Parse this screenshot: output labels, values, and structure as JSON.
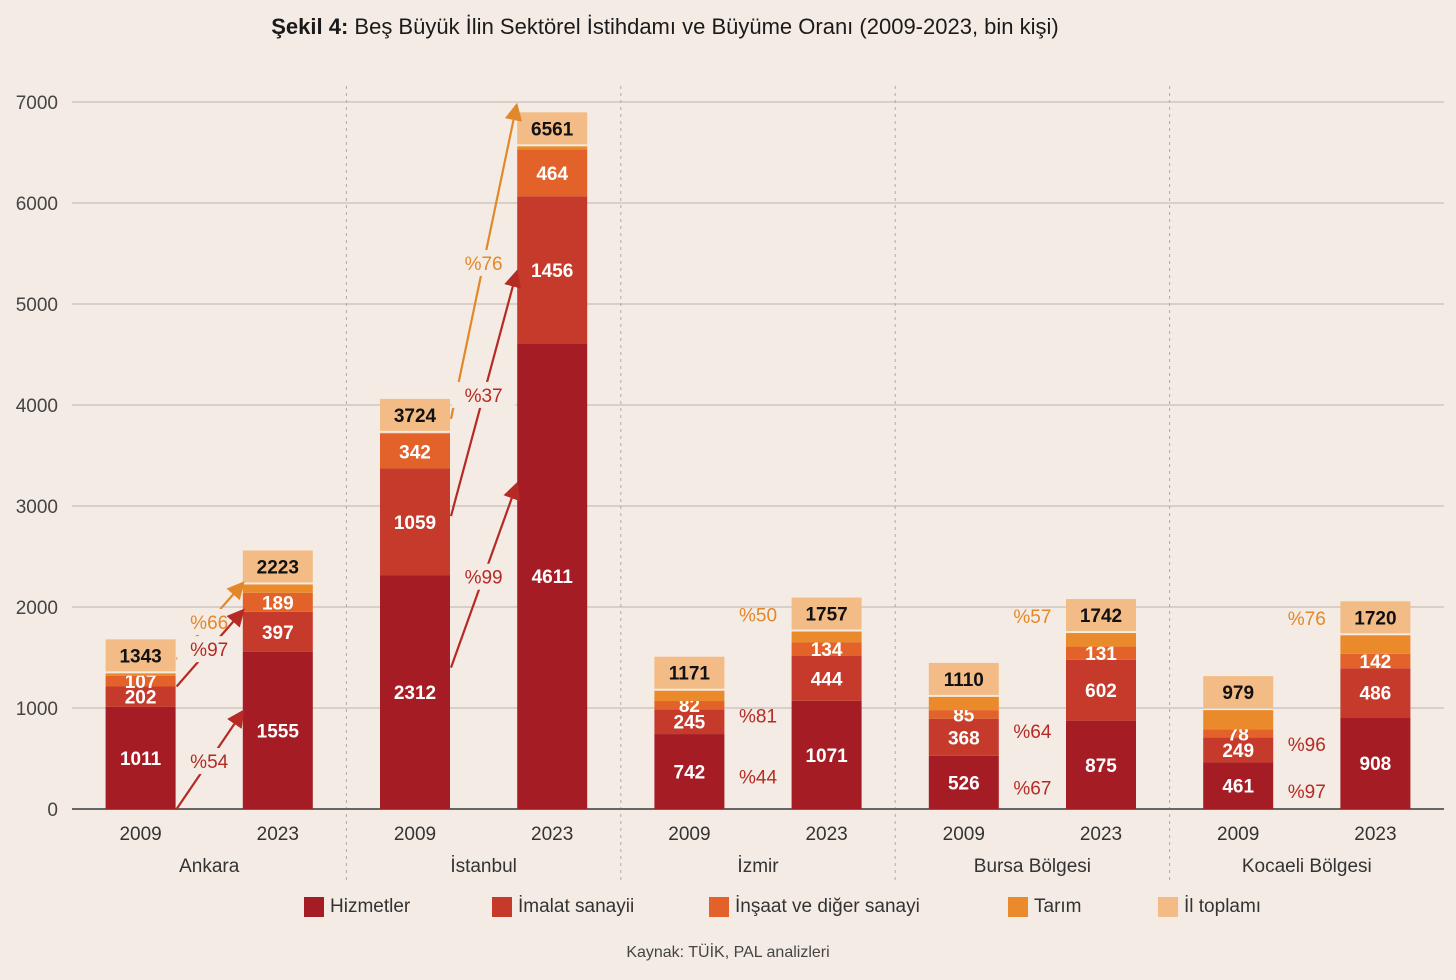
{
  "title": {
    "bold": "Şekil 4:",
    "text": "Beş Büyük İlin Sektörel İstihdamı ve Büyüme Oranı (2009-2023, bin kişi)"
  },
  "source": "Kaynak: TÜİK, PAL analizleri",
  "colors": {
    "hizmetler": "#a51c24",
    "imalat": "#c63a2c",
    "insaat": "#e2622a",
    "tarim": "#ea8a2a",
    "toplam": "#f3bb85",
    "arrow_total": "#e2882a",
    "arrow_sector": "#b52a24",
    "pct_total_text": "#e2882a",
    "pct_sector_text": "#b52a24"
  },
  "chart_data": {
    "type": "bar",
    "stacked": true,
    "ylim": [
      0,
      7000
    ],
    "yticks": [
      "0",
      "1000",
      "2000",
      "3000",
      "4000",
      "5000",
      "6000",
      "7000"
    ],
    "series_names": [
      "Hizmetler",
      "İmalat sanayii",
      "İnşaat ve diğer sanayi",
      "Tarım",
      "İl toplamı"
    ],
    "groups": [
      {
        "name": "Ankara",
        "bars": [
          {
            "year": "2009",
            "hizmetler": 1011,
            "imalat": 202,
            "insaat": 107,
            "tarim": 23,
            "total": 1343,
            "labels": {
              "hizmetler": "1011",
              "imalat": "202",
              "insaat": "107"
            },
            "total_label": "1343"
          },
          {
            "year": "2023",
            "hizmetler": 1555,
            "imalat": 397,
            "insaat": 189,
            "tarim": 82,
            "total": 2223,
            "labels": {
              "hizmetler": "1555",
              "imalat": "397",
              "insaat": "189"
            },
            "total_label": "2223"
          }
        ],
        "growth": [
          {
            "kind": "total",
            "label": "%66",
            "from": 1343,
            "to": 2223
          },
          {
            "kind": "sector",
            "label": "%97",
            "from": 1213,
            "to": 1952
          },
          {
            "kind": "sector",
            "label": "%54",
            "from": 0,
            "to": 950
          }
        ]
      },
      {
        "name": "İstanbul",
        "bars": [
          {
            "year": "2009",
            "hizmetler": 2312,
            "imalat": 1059,
            "insaat": 342,
            "tarim": 11,
            "total": 3724,
            "labels": {
              "hizmetler": "2312",
              "imalat": "1059",
              "insaat": "342"
            },
            "total_label": "3724"
          },
          {
            "year": "2023",
            "hizmetler": 4611,
            "imalat": 1456,
            "insaat": 464,
            "tarim": 30,
            "total": 6561,
            "labels": {
              "hizmetler": "4611",
              "imalat": "1456",
              "insaat": "464"
            },
            "total_label": "6561"
          }
        ],
        "growth": [
          {
            "kind": "total",
            "label": "%76",
            "from": 3724,
            "to": 6950
          },
          {
            "kind": "sector",
            "label": "%37",
            "from": 2900,
            "to": 5300
          },
          {
            "kind": "sector",
            "label": "%99",
            "from": 1400,
            "to": 3200
          }
        ]
      },
      {
        "name": "İzmir",
        "bars": [
          {
            "year": "2009",
            "hizmetler": 742,
            "imalat": 245,
            "insaat": 82,
            "tarim": 102,
            "total": 1171,
            "labels": {
              "hizmetler": "742",
              "imalat": "245",
              "insaat": "82"
            },
            "total_label": "1171"
          },
          {
            "year": "2023",
            "hizmetler": 1071,
            "imalat": 444,
            "insaat": 134,
            "tarim": 108,
            "total": 1757,
            "labels": {
              "hizmetler": "1071",
              "imalat": "444",
              "insaat": "134"
            },
            "total_label": "1757"
          }
        ],
        "growth": [
          {
            "kind": "total",
            "label": "%50",
            "from": null,
            "to": null
          },
          {
            "kind": "sector",
            "label": "%81",
            "from": null,
            "to": null
          },
          {
            "kind": "sector",
            "label": "%44",
            "from": null,
            "to": null
          }
        ]
      },
      {
        "name": "Bursa Bölgesi",
        "bars": [
          {
            "year": "2009",
            "hizmetler": 526,
            "imalat": 368,
            "insaat": 85,
            "tarim": 131,
            "total": 1110,
            "labels": {
              "hizmetler": "526",
              "imalat": "368",
              "insaat": "85"
            },
            "total_label": "1110"
          },
          {
            "year": "2023",
            "hizmetler": 875,
            "imalat": 602,
            "insaat": 131,
            "tarim": 134,
            "total": 1742,
            "labels": {
              "hizmetler": "875",
              "imalat": "602",
              "insaat": "131"
            },
            "total_label": "1742"
          }
        ],
        "growth": [
          {
            "kind": "total",
            "label": "%57",
            "from": null,
            "to": null
          },
          {
            "kind": "sector",
            "label": "%64",
            "from": null,
            "to": null
          },
          {
            "kind": "sector",
            "label": "%67",
            "from": null,
            "to": null
          }
        ]
      },
      {
        "name": "Kocaeli Bölgesi",
        "bars": [
          {
            "year": "2009",
            "hizmetler": 461,
            "imalat": 249,
            "insaat": 78,
            "tarim": 191,
            "total": 979,
            "labels": {
              "hizmetler": "461",
              "imalat": "249",
              "insaat": "78"
            },
            "total_label": "979"
          },
          {
            "year": "2023",
            "hizmetler": 908,
            "imalat": 486,
            "insaat": 142,
            "tarim": 184,
            "total": 1720,
            "labels": {
              "hizmetler": "908",
              "imalat": "486",
              "insaat": "142"
            },
            "total_label": "1720"
          }
        ],
        "growth": [
          {
            "kind": "total",
            "label": "%76",
            "from": null,
            "to": null
          },
          {
            "kind": "sector",
            "label": "%96",
            "from": null,
            "to": null
          },
          {
            "kind": "sector",
            "label": "%97",
            "from": null,
            "to": null
          }
        ]
      }
    ]
  },
  "legend": [
    {
      "key": "hizmetler",
      "label": "Hizmetler"
    },
    {
      "key": "imalat",
      "label": "İmalat sanayii"
    },
    {
      "key": "insaat",
      "label": "İnşaat ve diğer sanayi"
    },
    {
      "key": "tarim",
      "label": "Tarım"
    },
    {
      "key": "toplam",
      "label": "İl toplamı"
    }
  ]
}
